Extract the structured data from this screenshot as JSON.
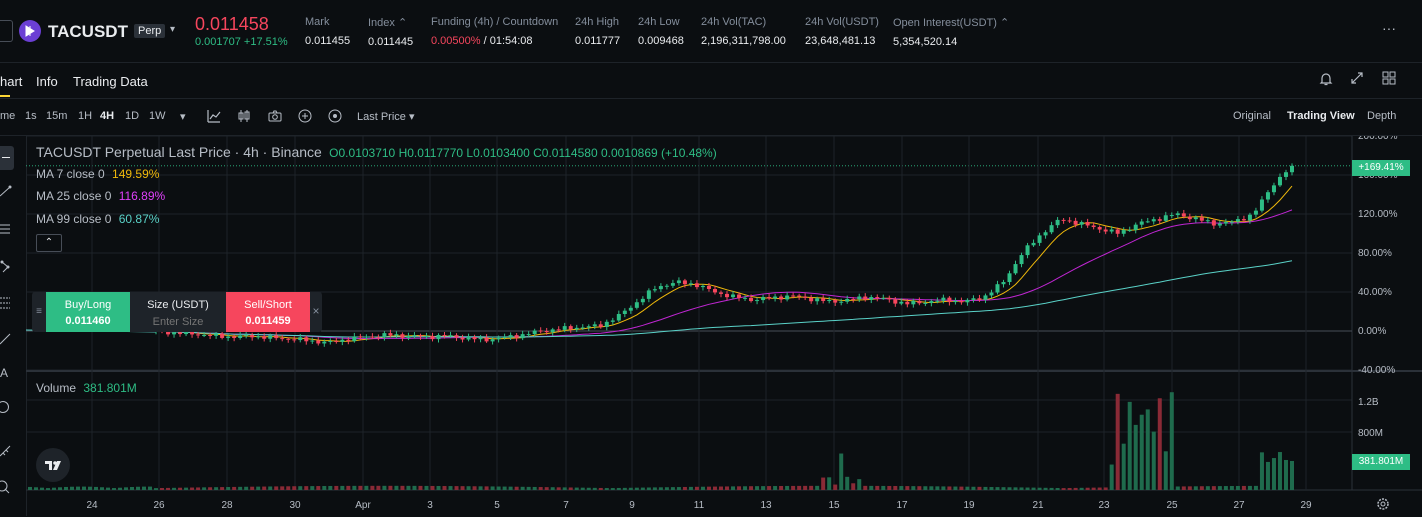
{
  "header": {
    "symbol": "TACUSDT",
    "perp_badge": "Perp",
    "last_price": "0.011458",
    "change": "0.001707 +17.51%",
    "stats": [
      {
        "label": "Mark",
        "value": "0.011455"
      },
      {
        "label": "Index ⌃",
        "value": "0.011445"
      },
      {
        "label": "Funding (4h) / Countdown",
        "value_red": "0.00500%",
        "value_rest": " / 01:54:08"
      },
      {
        "label": "24h High",
        "value": "0.011777"
      },
      {
        "label": "24h Low",
        "value": "0.009468"
      },
      {
        "label": "24h Vol(TAC)",
        "value": "2,196,311,798.00"
      },
      {
        "label": "24h Vol(USDT)",
        "value": "23,648,481.13"
      },
      {
        "label": "Open Interest(USDT) ⌃",
        "value": "5,354,520.14"
      }
    ],
    "more": "···"
  },
  "tabs": [
    "hart",
    "Info",
    "Trading Data"
  ],
  "toolbar": {
    "intervals": [
      "me",
      "1s",
      "15m",
      "1H",
      "4H",
      "1D",
      "1W"
    ],
    "active_interval": "4H",
    "price_type": "Last Price ▾",
    "views": [
      "Original",
      "Trading View",
      "Depth"
    ],
    "active_view": "Trading View"
  },
  "legend": {
    "title": "TACUSDT Perpetual Last Price · 4h · Binance",
    "ohlc": "O0.0103710 H0.0117770 L0.0103400 C0.0114580 0.0010869 (+10.48%)",
    "ma7_label": "MA 7 close 0",
    "ma7_value": "149.59%",
    "ma25_label": "MA 25 close 0",
    "ma25_value": "116.89%",
    "ma99_label": "MA 99 close 0",
    "ma99_value": "60.87%",
    "volume_label": "Volume",
    "volume_value": "381.801M"
  },
  "order_widget": {
    "buy_label": "Buy/Long",
    "buy_price": "0.011460",
    "size_label": "Size (USDT)",
    "size_placeholder": "Enter Size",
    "sell_label": "Sell/Short",
    "sell_price": "0.011459",
    "close": "×"
  },
  "price_axis_ticks": [
    "200.00%",
    "160.00%",
    "120.00%",
    "80.00%",
    "40.00%",
    "0.00%",
    "-40.00%"
  ],
  "current_price_badge": "+169.41%",
  "volume_axis_ticks": [
    "1.2B",
    "800M"
  ],
  "volume_badge": "381.801M",
  "date_ticks": [
    "24",
    "26",
    "28",
    "30",
    "Apr",
    "3",
    "5",
    "7",
    "9",
    "11",
    "13",
    "15",
    "17",
    "19",
    "21",
    "23",
    "25",
    "27",
    "29"
  ],
  "colors": {
    "up": "#2ebd85",
    "down": "#f6465d",
    "ma7": "#f0b90b",
    "ma25": "#c026d3",
    "ma99": "#5ad2c8",
    "accent": "#fcd535"
  },
  "chart_data": {
    "type": "candlestick",
    "y_unit": "% change",
    "ylim": [
      -40,
      200
    ],
    "x_date_ticks": [
      "24",
      "26",
      "28",
      "30",
      "Apr",
      "3",
      "5",
      "7",
      "9",
      "11",
      "13",
      "15",
      "17",
      "19",
      "21",
      "23",
      "25",
      "27",
      "29"
    ],
    "close_pct_samples": [
      0,
      -2,
      -3,
      -5,
      -6,
      -5,
      -7,
      -8,
      -10,
      -12,
      -8,
      -6,
      -4,
      -5,
      -6,
      -5,
      -7,
      -9,
      -7,
      -4,
      0,
      2,
      4,
      5,
      15,
      30,
      45,
      50,
      48,
      40,
      35,
      32,
      34,
      36,
      33,
      30,
      32,
      35,
      32,
      28,
      30,
      32,
      30,
      35,
      50,
      80,
      100,
      115,
      110,
      105,
      100,
      110,
      115,
      120,
      115,
      110,
      112,
      120,
      150,
      169.41
    ],
    "ma7_last": 149.59,
    "ma25_last": 116.89,
    "ma99_last": 60.87,
    "volume_last": "381.801M"
  }
}
